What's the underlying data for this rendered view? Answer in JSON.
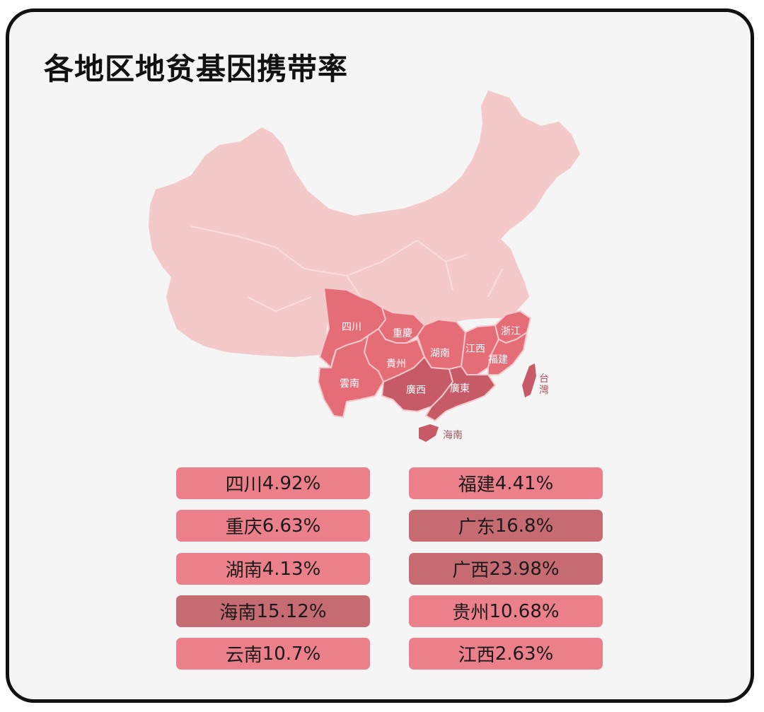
{
  "title": "各地区地贫基因携带率",
  "colors": {
    "base": "#f3c9ca",
    "light": "#ec808a",
    "dark": "#c76b72",
    "map_mid": "#e56d78",
    "map_dark": "#c75a67"
  },
  "map": {
    "provinces": [
      {
        "name": "四川",
        "level": "mid"
      },
      {
        "name": "重慶",
        "level": "mid"
      },
      {
        "name": "貴州",
        "level": "mid"
      },
      {
        "name": "雲南",
        "level": "mid"
      },
      {
        "name": "湖南",
        "level": "mid"
      },
      {
        "name": "江西",
        "level": "mid"
      },
      {
        "name": "浙江",
        "level": "mid"
      },
      {
        "name": "福建",
        "level": "mid"
      },
      {
        "name": "廣西",
        "level": "dark"
      },
      {
        "name": "廣東",
        "level": "dark"
      },
      {
        "name": "台灣",
        "level": "dark"
      },
      {
        "name": "海南",
        "level": "dark"
      }
    ]
  },
  "legend": [
    {
      "region": "四川",
      "rate": "4.92%",
      "level": "light"
    },
    {
      "region": "福建",
      "rate": "4.41%",
      "level": "light"
    },
    {
      "region": "重庆",
      "rate": "6.63%",
      "level": "light"
    },
    {
      "region": "广东",
      "rate": "16.8%",
      "level": "dark"
    },
    {
      "region": "湖南",
      "rate": "4.13%",
      "level": "light"
    },
    {
      "region": "广西",
      "rate": "23.98%",
      "level": "dark"
    },
    {
      "region": "海南",
      "rate": "15.12%",
      "level": "dark"
    },
    {
      "region": "贵州",
      "rate": "10.68%",
      "level": "light"
    },
    {
      "region": "云南",
      "rate": "10.7%",
      "level": "light"
    },
    {
      "region": "江西",
      "rate": "2.63%",
      "level": "light"
    }
  ]
}
